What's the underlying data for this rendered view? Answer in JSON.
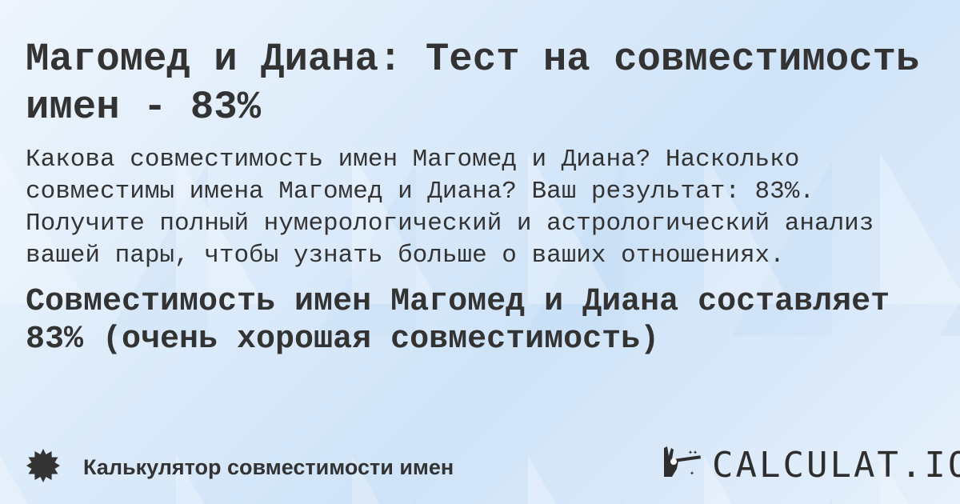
{
  "title": "Магомед и Диана: Тест на совместимость имен - 83%",
  "description": "Какова совместимость имен Магомед и Диана? Насколько совместимы имена Магомед и Диана? Ваш результат: 83%. Получите полный нумерологический и астрологический анализ вашей пары, чтобы узнать больше о ваших отношениях.",
  "result": "Совместимость имен Магомед и Диана составляет 83% (очень хорошая совместимость)",
  "footer": {
    "icon": "badge-icon",
    "label": "Калькулятор совместимости имен"
  },
  "logo": {
    "icon": "magic-hand-icon",
    "text": "CALCULAT.IO"
  },
  "colors": {
    "text": "#333333",
    "background": "#dcebfa"
  }
}
